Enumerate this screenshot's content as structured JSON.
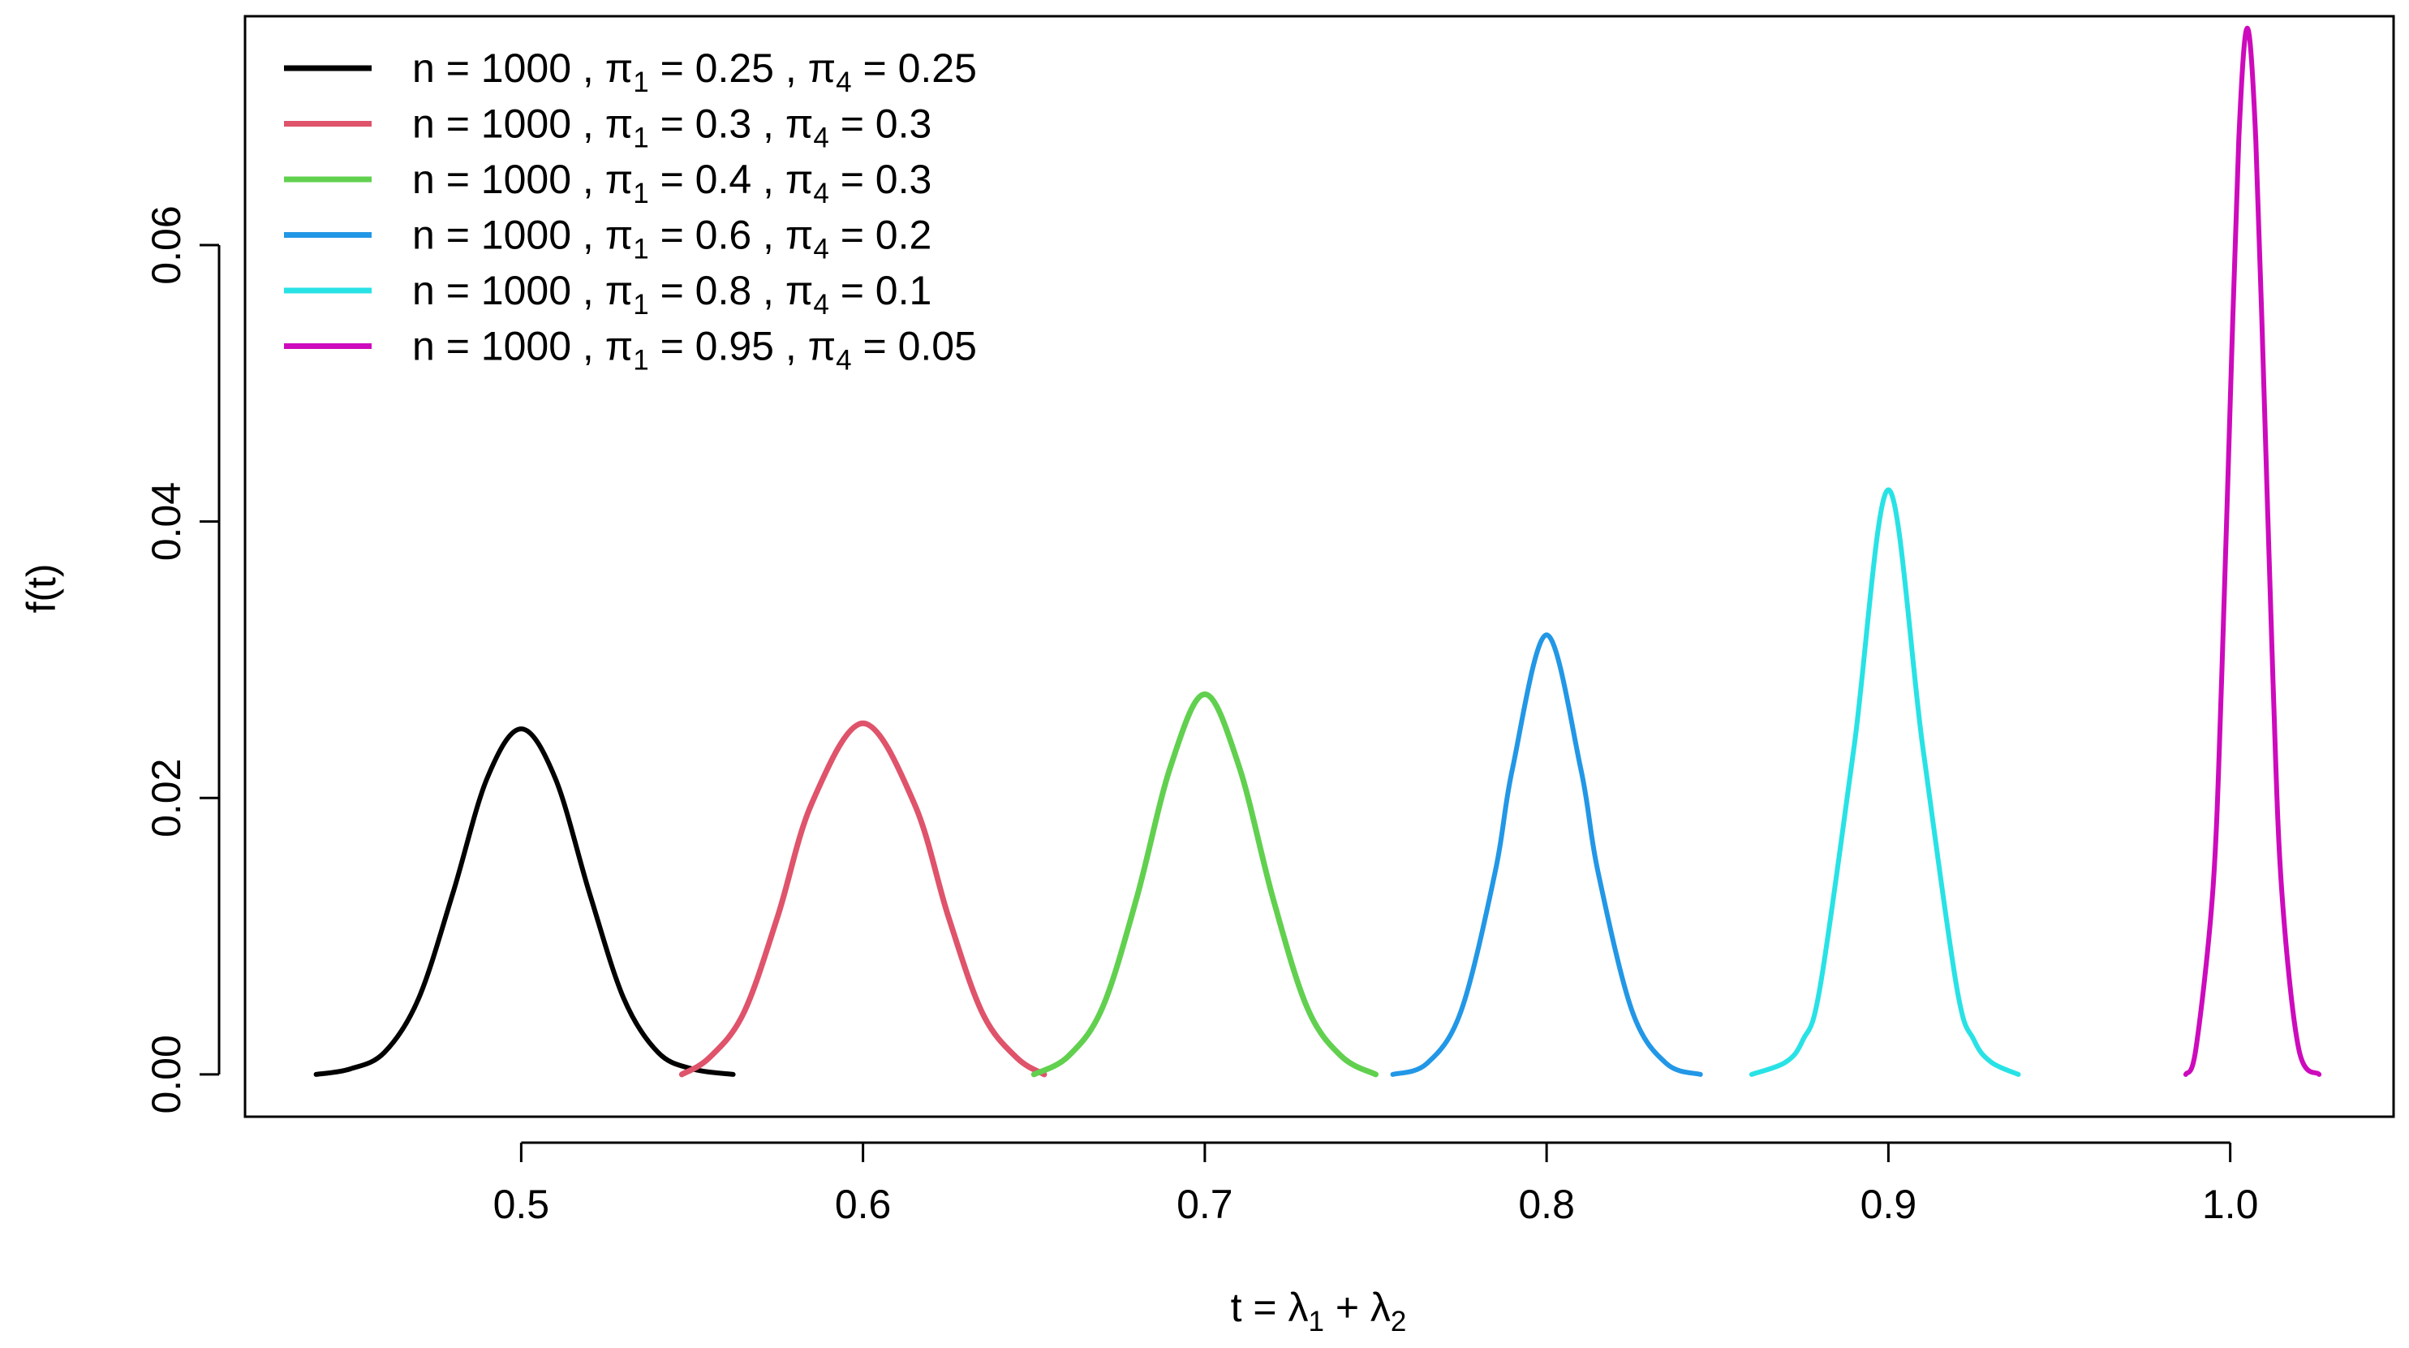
{
  "chart_data": {
    "type": "line",
    "title": "",
    "xlabel": "t = λ1 + λ2",
    "xlabel_parts": {
      "prefix": "t = λ",
      "sub1": "1",
      "plus": " + λ",
      "sub2": "2"
    },
    "ylabel": "f(t)",
    "xlim": [
      0.4192,
      1.0478
    ],
    "ylim": [
      -0.00306,
      0.07656
    ],
    "xticks": [
      0.5,
      0.6,
      0.7,
      0.8,
      0.9,
      1.0
    ],
    "xtick_labels": [
      "0.5",
      "0.6",
      "0.7",
      "0.8",
      "0.9",
      "1.0"
    ],
    "yticks": [
      0.0,
      0.02,
      0.04,
      0.06
    ],
    "ytick_labels": [
      "0.00",
      "0.02",
      "0.04",
      "0.06"
    ],
    "grid": false,
    "legend_position": "top-left",
    "series": [
      {
        "name": "n = 1000 , π1 = 0.25 , π4 = 0.25",
        "label": {
          "n": "1000",
          "p1": "0.25",
          "p4": "0.25"
        },
        "color": "#000000",
        "x": [
          0.44,
          0.45,
          0.46,
          0.47,
          0.48,
          0.49,
          0.5,
          0.51,
          0.52,
          0.53,
          0.54,
          0.55,
          0.562
        ],
        "y": [
          0.0,
          0.0004,
          0.0016,
          0.0055,
          0.0131,
          0.0214,
          0.025,
          0.0214,
          0.0131,
          0.0055,
          0.0016,
          0.0004,
          0.0
        ]
      },
      {
        "name": "n = 1000 , π1 = 0.3 , π4 = 0.3",
        "label": {
          "n": "1000",
          "p1": "0.3",
          "p4": "0.3"
        },
        "color": "#DF536B",
        "x": [
          0.547,
          0.555,
          0.565,
          0.575,
          0.585,
          0.6,
          0.615,
          0.625,
          0.635,
          0.645,
          0.653
        ],
        "y": [
          0.0,
          0.0012,
          0.0044,
          0.0114,
          0.0196,
          0.0254,
          0.0196,
          0.0114,
          0.0044,
          0.0012,
          0.0
        ],
        "line_width": 7
      },
      {
        "name": "n = 1000 , π1 = 0.4 , π4 = 0.3",
        "label": {
          "n": "1000",
          "p1": "0.4",
          "p4": "0.3"
        },
        "color": "#61D04F",
        "x": [
          0.65,
          0.66,
          0.67,
          0.68,
          0.69,
          0.7,
          0.71,
          0.72,
          0.73,
          0.74,
          0.75
        ],
        "y": [
          0.0,
          0.0013,
          0.0048,
          0.0127,
          0.0223,
          0.0275,
          0.0223,
          0.0127,
          0.0048,
          0.0013,
          0.0
        ],
        "line_width": 7
      },
      {
        "name": "n = 1000 , π1 = 0.6 , π4 = 0.2",
        "label": {
          "n": "1000",
          "p1": "0.6",
          "p4": "0.2"
        },
        "color": "#2297E6",
        "x": [
          0.755,
          0.765,
          0.775,
          0.785,
          0.79,
          0.8,
          0.81,
          0.815,
          0.825,
          0.835,
          0.845
        ],
        "y": [
          0.0,
          0.0008,
          0.0046,
          0.0147,
          0.0221,
          0.0318,
          0.0221,
          0.0147,
          0.0046,
          0.0008,
          0.0
        ]
      },
      {
        "name": "n = 1000 , π1 = 0.8 , π4 = 0.1",
        "label": {
          "n": "1000",
          "p1": "0.8",
          "p4": "0.1"
        },
        "color": "#28E2E5",
        "x": [
          0.86,
          0.87,
          0.875,
          0.88,
          0.89,
          0.9,
          0.91,
          0.92,
          0.925,
          0.93,
          0.938
        ],
        "y": [
          0.0,
          0.0009,
          0.0025,
          0.0063,
          0.0238,
          0.0423,
          0.0238,
          0.0063,
          0.0025,
          0.0009,
          0.0
        ]
      },
      {
        "name": "n = 1000 , π1 = 0.95 , π4 = 0.05",
        "label": {
          "n": "1000",
          "p1": "0.95",
          "p4": "0.05"
        },
        "color": "#CD0BBC",
        "x": [
          0.987,
          0.99,
          0.995,
          0.9975,
          1.0,
          1.0025,
          1.005,
          1.0075,
          1.01,
          1.0125,
          1.015,
          1.02,
          1.026
        ],
        "y": [
          0.0,
          0.0019,
          0.0136,
          0.0286,
          0.0485,
          0.0676,
          0.0757,
          0.0676,
          0.0485,
          0.0286,
          0.0136,
          0.0019,
          0.0
        ]
      }
    ]
  }
}
